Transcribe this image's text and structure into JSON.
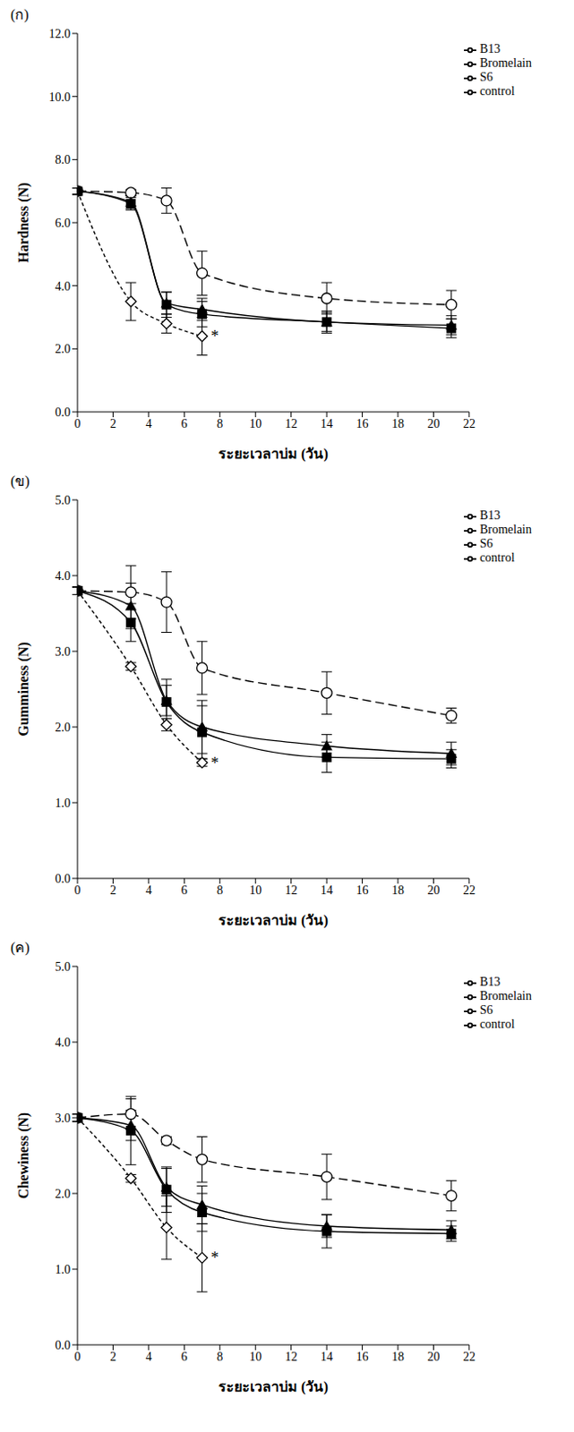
{
  "chart_data": [
    {
      "type": "line",
      "title": "(ก)",
      "x_label": "ระยะเวลาบ่ม (วัน)",
      "y_label": "Hardness (N)",
      "x": [
        0,
        3,
        5,
        7,
        14,
        21
      ],
      "xlim": [
        0,
        22
      ],
      "xticks": [
        0,
        2,
        4,
        6,
        8,
        10,
        12,
        14,
        16,
        18,
        20,
        22
      ],
      "ylim": [
        0,
        12
      ],
      "yticks": [
        {
          "value": 0,
          "label": "0.0"
        },
        {
          "value": 2,
          "label": "2.0"
        },
        {
          "value": 4,
          "label": "4.0"
        },
        {
          "value": 6,
          "label": "6.0"
        },
        {
          "value": 8,
          "label": "8.0"
        },
        {
          "value": 10,
          "label": "10.0"
        },
        {
          "value": 12,
          "label": "12.0"
        }
      ],
      "legend": "upper right",
      "series": [
        {
          "name": "control",
          "color": "#000000",
          "marker": "circle",
          "line_style": "dashed",
          "values": [
            7.0,
            6.95,
            6.7,
            4.4,
            3.6,
            3.4
          ],
          "errors": [
            0.1,
            0.1,
            0.4,
            0.7,
            0.5,
            0.45
          ]
        },
        {
          "name": "Bromelain",
          "color": "#000000",
          "marker": "diamond",
          "line_style": "dotted",
          "values": [
            7.0,
            3.5,
            2.8,
            2.4,
            null,
            null
          ],
          "errors": [
            0.1,
            0.6,
            0.3,
            0.6,
            null,
            null
          ]
        },
        {
          "name": "B13",
          "color": "#000000",
          "marker": "square",
          "line_style": "solid",
          "values": [
            7.0,
            6.6,
            3.4,
            3.1,
            2.85,
            2.65
          ],
          "errors": [
            0.1,
            0.2,
            0.4,
            0.4,
            0.35,
            0.3
          ]
        },
        {
          "name": "S6",
          "color": "#000000",
          "marker": "triangle",
          "line_style": "solid",
          "values": [
            7.0,
            6.65,
            3.45,
            3.25,
            2.85,
            2.75
          ],
          "errors": [
            0.1,
            0.2,
            0.35,
            0.35,
            0.3,
            0.3
          ]
        }
      ],
      "annotations": [
        {
          "text": "*",
          "x": 7,
          "y": 2.4
        }
      ]
    },
    {
      "type": "line",
      "title": "(ข)",
      "x_label": "ระยะเวลาบ่ม (วัน)",
      "y_label": "Gumminess (N)",
      "x": [
        0,
        3,
        5,
        7,
        14,
        21
      ],
      "xlim": [
        0,
        22
      ],
      "xticks": [
        0,
        2,
        4,
        6,
        8,
        10,
        12,
        14,
        16,
        18,
        20,
        22
      ],
      "ylim": [
        0,
        5
      ],
      "yticks": [
        {
          "value": 0,
          "label": "0.0"
        },
        {
          "value": 1,
          "label": "1.0"
        },
        {
          "value": 2,
          "label": "2.0"
        },
        {
          "value": 3,
          "label": "3.0"
        },
        {
          "value": 4,
          "label": "4.0"
        },
        {
          "value": 5,
          "label": "5.0"
        }
      ],
      "legend": "upper right",
      "series": [
        {
          "name": "control",
          "color": "#000000",
          "marker": "circle",
          "line_style": "dashed",
          "values": [
            3.8,
            3.78,
            3.65,
            2.78,
            2.45,
            2.15
          ],
          "errors": [
            0.05,
            0.35,
            0.4,
            0.35,
            0.28,
            0.1
          ]
        },
        {
          "name": "Bromelain",
          "color": "#000000",
          "marker": "diamond",
          "line_style": "dotted",
          "values": [
            3.8,
            2.8,
            2.03,
            1.53,
            null,
            null
          ],
          "errors": [
            0.05,
            0.05,
            0.08,
            0.05,
            null,
            null
          ]
        },
        {
          "name": "B13",
          "color": "#000000",
          "marker": "square",
          "line_style": "solid",
          "values": [
            3.8,
            3.38,
            2.33,
            1.93,
            1.6,
            1.58
          ],
          "errors": [
            0.05,
            0.25,
            0.3,
            0.35,
            0.2,
            0.12
          ]
        },
        {
          "name": "S6",
          "color": "#000000",
          "marker": "triangle",
          "line_style": "solid",
          "values": [
            3.8,
            3.6,
            2.35,
            2.0,
            1.75,
            1.65
          ],
          "errors": [
            0.05,
            0.3,
            0.2,
            0.35,
            0.15,
            0.15
          ]
        }
      ],
      "annotations": [
        {
          "text": "*",
          "x": 7,
          "y": 1.53
        }
      ]
    },
    {
      "type": "line",
      "title": "(ค)",
      "x_label": "ระยะเวลาบ่ม (วัน)",
      "y_label": "Chewiness (N)",
      "x": [
        0,
        3,
        5,
        7,
        14,
        21
      ],
      "xlim": [
        0,
        22
      ],
      "xticks": [
        0,
        2,
        4,
        6,
        8,
        10,
        12,
        14,
        16,
        18,
        20,
        22
      ],
      "ylim": [
        0,
        5
      ],
      "yticks": [
        {
          "value": 0,
          "label": "0.0"
        },
        {
          "value": 1,
          "label": "1.0"
        },
        {
          "value": 2,
          "label": "2.0"
        },
        {
          "value": 3,
          "label": "3.0"
        },
        {
          "value": 4,
          "label": "4.0"
        },
        {
          "value": 5,
          "label": "5.0"
        }
      ],
      "legend": "upper right",
      "series": [
        {
          "name": "control",
          "color": "#000000",
          "marker": "circle",
          "line_style": "dashed",
          "values": [
            3.0,
            3.05,
            2.7,
            2.45,
            2.22,
            1.97
          ],
          "errors": [
            0.05,
            0.2,
            0.05,
            0.3,
            0.3,
            0.2
          ]
        },
        {
          "name": "Bromelain",
          "color": "#000000",
          "marker": "diamond",
          "line_style": "dotted",
          "values": [
            3.0,
            2.2,
            1.55,
            1.15,
            null,
            null
          ],
          "errors": [
            0.05,
            0.05,
            0.42,
            0.45,
            null,
            null
          ]
        },
        {
          "name": "B13",
          "color": "#000000",
          "marker": "square",
          "line_style": "solid",
          "values": [
            3.0,
            2.83,
            2.05,
            1.75,
            1.5,
            1.47
          ],
          "errors": [
            0.05,
            0.45,
            0.3,
            0.25,
            0.22,
            0.1
          ]
        },
        {
          "name": "S6",
          "color": "#000000",
          "marker": "triangle",
          "line_style": "solid",
          "values": [
            3.0,
            2.9,
            2.08,
            1.85,
            1.57,
            1.52
          ],
          "errors": [
            0.05,
            0.2,
            0.25,
            0.25,
            0.15,
            0.12
          ]
        }
      ],
      "annotations": [
        {
          "text": "*",
          "x": 7,
          "y": 1.15
        }
      ]
    }
  ]
}
